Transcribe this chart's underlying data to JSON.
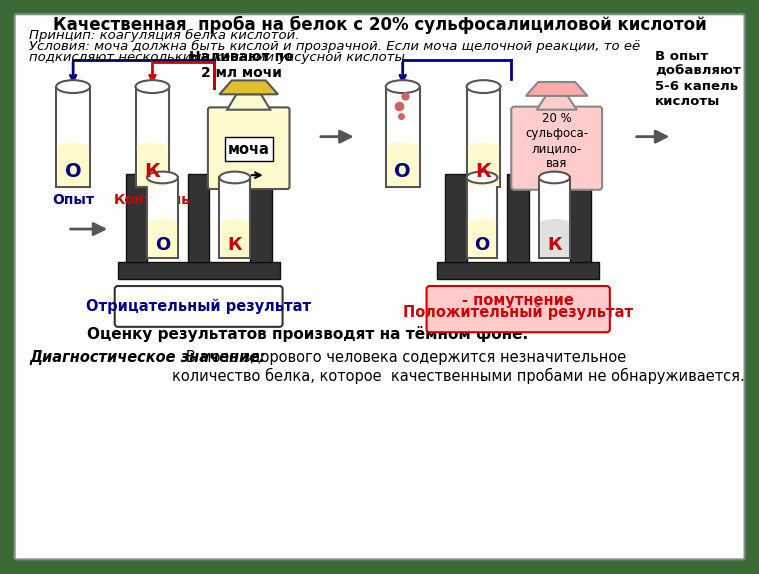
{
  "title": "Качественная  проба на белок с 20% сульфосалициловой кислотой",
  "line1": "Принцип: коагуляция белка кислотой.",
  "line2": "Условия: моча должна быть кислой и прозрачной. Если моча щелочной реакции, то её",
  "line3": "подкисляют несколькими каплями уксусной кислоты.",
  "text_naliv": "Наливают по\n2 мл мочи",
  "text_mocha": "моча",
  "text_opyt": "Опыт",
  "text_kontrol": "Контроль",
  "text_dobavl": "В опыт\nдобавляют\n5-6 капель\nкислоты",
  "text_20pct": "20 %\nсульфоса-\nлицило-\nвая\nк-та",
  "text_otric": "Отрицательный результат",
  "text_polos_1": "Положительный результат",
  "text_polos_2": "- помутнение",
  "text_ocenka": "Оценку результатов производят на тёмном фоне.",
  "text_diag_italic": "Диагностическое значение:",
  "text_diag_normal": "   В моче здорового человека содержится незначительное\nколичество белка, которое  качественными пробами не обнаруживается.",
  "bg_color": "#ffffff",
  "outer_bg": "#3a6b35",
  "tube_fill": "#fffacd",
  "tube_stroke": "#555555",
  "label_O_color": "#000080",
  "label_K_color": "#cc0000",
  "arrow_blue": "#000080",
  "arrow_red": "#cc0000",
  "bottle_fill": "#fffacd",
  "bottle_stroke": "#555555",
  "dark_stand": "#333333",
  "acid_fill": "#ffcccc",
  "acid_funnel_fill": "#ffaaaa"
}
